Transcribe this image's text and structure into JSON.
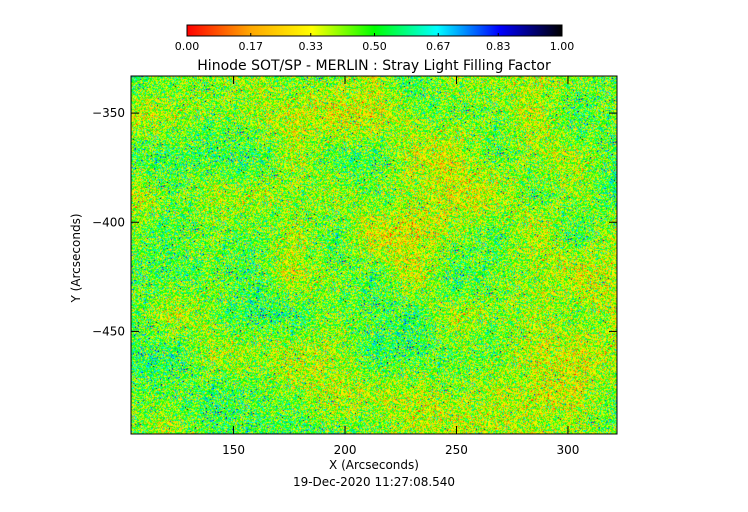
{
  "chart_data": {
    "type": "heatmap",
    "title": "Hinode SOT/SP - MERLIN : Stray Light Filling Factor",
    "xlabel": "X (Arcseconds)",
    "ylabel": "Y (Arcseconds)",
    "xlim": [
      104,
      322
    ],
    "ylim": [
      -497,
      -333
    ],
    "x_ticks": [
      150,
      200,
      250,
      300
    ],
    "y_ticks": [
      -350,
      -400,
      -450
    ],
    "x_tick_labels": [
      "150",
      "200",
      "250",
      "300"
    ],
    "y_tick_labels": [
      "−350",
      "−400",
      "−450"
    ],
    "colorbar": {
      "min": 0.0,
      "max": 1.0,
      "ticks": [
        0.0,
        0.17,
        0.33,
        0.5,
        0.67,
        0.83,
        1.0
      ],
      "tick_labels": [
        "0.00",
        "0.17",
        "0.33",
        "0.50",
        "0.67",
        "0.83",
        "1.00"
      ],
      "colors": [
        "#ff0000",
        "#ffa500",
        "#ffff00",
        "#00ff00",
        "#00ffff",
        "#0000ff",
        "#000000"
      ]
    },
    "value_distribution": {
      "mean": 0.42,
      "spread": 0.13
    },
    "grid": false,
    "legend": "colorbar-top"
  },
  "footer": {
    "timestamp": "19-Dec-2020 11:27:08.540"
  }
}
